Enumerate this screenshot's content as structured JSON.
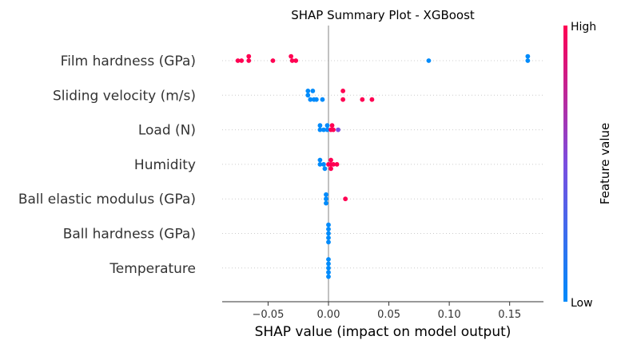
{
  "chart_data": {
    "type": "scatter",
    "subtype": "shap-summary-beeswarm",
    "title": "SHAP Summary Plot - XGBoost",
    "xlabel": "SHAP value (impact on model output)",
    "xlim": [
      -0.088,
      0.178
    ],
    "xticks": [
      {
        "value": -0.05,
        "label": "−0.05"
      },
      {
        "value": 0.0,
        "label": "0.00"
      },
      {
        "value": 0.05,
        "label": "0.05"
      },
      {
        "value": 0.1,
        "label": "0.10"
      },
      {
        "value": 0.15,
        "label": "0.15"
      }
    ],
    "features": [
      {
        "name": "Film hardness (GPa)",
        "points": [
          {
            "x": -0.075,
            "dy": 0,
            "level": "high"
          },
          {
            "x": -0.072,
            "dy": 0,
            "level": "high"
          },
          {
            "x": -0.066,
            "dy": 0,
            "level": "high"
          },
          {
            "x": -0.066,
            "dy": -1,
            "level": "high"
          },
          {
            "x": -0.046,
            "dy": 0,
            "level": "high"
          },
          {
            "x": -0.031,
            "dy": -1,
            "level": "high"
          },
          {
            "x": -0.03,
            "dy": 0,
            "level": "high"
          },
          {
            "x": -0.027,
            "dy": 0,
            "level": "high"
          },
          {
            "x": 0.083,
            "dy": 0,
            "level": "low"
          },
          {
            "x": 0.165,
            "dy": -1,
            "level": "low"
          },
          {
            "x": 0.165,
            "dy": 0,
            "level": "low"
          }
        ]
      },
      {
        "name": "Sliding velocity (m/s)",
        "points": [
          {
            "x": -0.017,
            "dy": -1,
            "level": "low"
          },
          {
            "x": -0.013,
            "dy": -1,
            "level": "low"
          },
          {
            "x": -0.017,
            "dy": 0,
            "level": "low"
          },
          {
            "x": -0.015,
            "dy": 1,
            "level": "low"
          },
          {
            "x": -0.012,
            "dy": 1,
            "level": "low"
          },
          {
            "x": -0.01,
            "dy": 1,
            "level": "low"
          },
          {
            "x": -0.005,
            "dy": 1,
            "level": "low"
          },
          {
            "x": 0.012,
            "dy": -1,
            "level": "high"
          },
          {
            "x": 0.012,
            "dy": 1,
            "level": "high"
          },
          {
            "x": 0.028,
            "dy": 1,
            "level": "high"
          },
          {
            "x": 0.036,
            "dy": 1,
            "level": "high"
          }
        ]
      },
      {
        "name": "Load (N)",
        "points": [
          {
            "x": -0.007,
            "dy": -1,
            "level": "low"
          },
          {
            "x": -0.001,
            "dy": -1,
            "level": "low"
          },
          {
            "x": 0.003,
            "dy": -1,
            "level": "high"
          },
          {
            "x": -0.007,
            "dy": 0,
            "level": "low"
          },
          {
            "x": -0.004,
            "dy": 0,
            "level": "low"
          },
          {
            "x": -0.001,
            "dy": 0,
            "level": "low"
          },
          {
            "x": 0.002,
            "dy": 0,
            "level": "high"
          },
          {
            "x": 0.004,
            "dy": 0,
            "level": "high"
          },
          {
            "x": 0.008,
            "dy": 0,
            "level": "mid"
          }
        ]
      },
      {
        "name": "Humidity",
        "points": [
          {
            "x": -0.007,
            "dy": -1,
            "level": "low"
          },
          {
            "x": 0.002,
            "dy": -1,
            "level": "high"
          },
          {
            "x": -0.007,
            "dy": 0,
            "level": "low"
          },
          {
            "x": -0.004,
            "dy": 0,
            "level": "low"
          },
          {
            "x": 0.0,
            "dy": 0,
            "level": "high"
          },
          {
            "x": 0.002,
            "dy": 0,
            "level": "high"
          },
          {
            "x": 0.004,
            "dy": 0,
            "level": "high"
          },
          {
            "x": 0.007,
            "dy": 0,
            "level": "high"
          },
          {
            "x": -0.003,
            "dy": 1,
            "level": "low"
          },
          {
            "x": 0.002,
            "dy": 1,
            "level": "high"
          }
        ]
      },
      {
        "name": "Ball elastic modulus (GPa)",
        "points": [
          {
            "x": -0.002,
            "dy": -1,
            "level": "low"
          },
          {
            "x": 0.014,
            "dy": 0,
            "level": "high"
          },
          {
            "x": -0.002,
            "dy": 0,
            "level": "low"
          },
          {
            "x": -0.002,
            "dy": 1,
            "level": "low"
          }
        ]
      },
      {
        "name": "Ball hardness (GPa)",
        "points": [
          {
            "x": 0.0,
            "dy": -2,
            "level": "low"
          },
          {
            "x": 0.0,
            "dy": -1,
            "level": "low"
          },
          {
            "x": 0.0,
            "dy": 0,
            "level": "low"
          },
          {
            "x": 0.0,
            "dy": 1,
            "level": "low"
          },
          {
            "x": 0.0,
            "dy": 2,
            "level": "low"
          }
        ]
      },
      {
        "name": "Temperature",
        "points": [
          {
            "x": 0.0,
            "dy": -2,
            "level": "low"
          },
          {
            "x": 0.0,
            "dy": -1,
            "level": "low"
          },
          {
            "x": 0.0,
            "dy": 0,
            "level": "low"
          },
          {
            "x": 0.0,
            "dy": 1,
            "level": "low"
          },
          {
            "x": 0.0,
            "dy": 2,
            "level": "low"
          }
        ]
      }
    ],
    "colorbar": {
      "title": "Feature value",
      "high_label": "High",
      "low_label": "Low"
    },
    "colors": {
      "high": "#ff0052",
      "mid": "#7b4ee0",
      "low": "#008bfb",
      "zero_line": "#999999",
      "axis": "#333333",
      "row_guide": "#cccccc"
    }
  }
}
